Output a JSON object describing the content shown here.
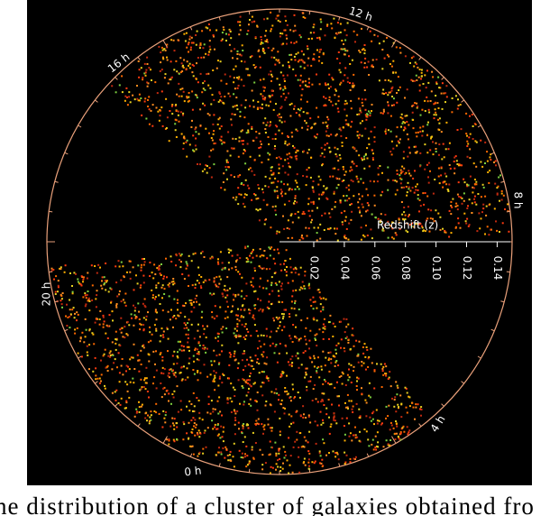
{
  "figure": {
    "hour_labels": [
      "12 h",
      "16 h",
      "8 h",
      "20 h",
      "4 h",
      "0 h"
    ],
    "axis_title": "Redshift (z)",
    "redshift_ticks": [
      "0.02",
      "0.04",
      "0.06",
      "0.08",
      "0.10",
      "0.12",
      "0.14"
    ]
  },
  "caption": "he distribution of a cluster of galaxies obtained fro"
}
